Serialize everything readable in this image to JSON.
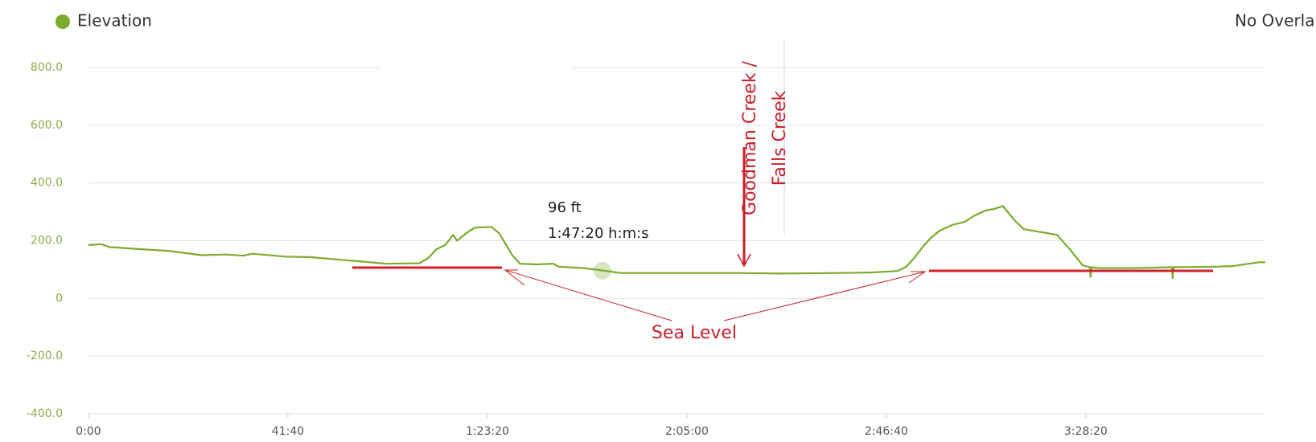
{
  "chart_data": {
    "type": "line",
    "legend": "No Overla",
    "x": [
      0,
      160,
      260,
      580,
      1000,
      1420,
      1730,
      1940,
      2050,
      2470,
      2790,
      3100,
      3420,
      3730,
      4150,
      4260,
      4360,
      4470,
      4570,
      4620,
      4730,
      4840,
      5050,
      5150,
      5310,
      5410,
      5620,
      5830,
      5890,
      6200,
      6360,
      6570,
      6670,
      7300,
      8150,
      8670,
      9410,
      9830,
      10140,
      10250,
      10350,
      10460,
      10560,
      10670,
      10830,
      10980,
      11090,
      11250,
      11350,
      11460,
      11610,
      11720,
      11930,
      12140,
      12300,
      12460,
      12550,
      12560,
      12570,
      12670,
      13090,
      13580,
      13590,
      13600,
      13610,
      14140,
      14350,
      14660,
      14750
    ],
    "series": [
      {
        "name": "Elevation",
        "color": "#7aab2f",
        "values": [
          185,
          188,
          178,
          172,
          165,
          150,
          152,
          148,
          155,
          145,
          143,
          135,
          128,
          120,
          122,
          140,
          170,
          185,
          220,
          200,
          225,
          245,
          248,
          225,
          150,
          120,
          118,
          120,
          110,
          105,
          100,
          92,
          88,
          88,
          88,
          86,
          88,
          90,
          95,
          110,
          140,
          180,
          210,
          235,
          255,
          265,
          285,
          305,
          310,
          320,
          270,
          240,
          230,
          220,
          170,
          115,
          108,
          75,
          108,
          105,
          105,
          108,
          70,
          108,
          108,
          110,
          112,
          125,
          125
        ]
      }
    ],
    "xlim": [
      0,
      14750
    ],
    "ylim": [
      -400,
      800
    ],
    "xticks": [
      {
        "value": 0,
        "label": "0:00"
      },
      {
        "value": 2500,
        "label": "41:40"
      },
      {
        "value": 5000,
        "label": "1:23:20"
      },
      {
        "value": 7500,
        "label": "2:05:00"
      },
      {
        "value": 10000,
        "label": "2:46:40"
      },
      {
        "value": 12500,
        "label": "3:28:20"
      }
    ],
    "yticks": [
      {
        "value": 800,
        "label": "800.0"
      },
      {
        "value": 600,
        "label": "600.0"
      },
      {
        "value": 400,
        "label": "400.0"
      },
      {
        "value": 200,
        "label": "200.0"
      },
      0,
      {
        "value": -200,
        "label": "-200.0"
      },
      {
        "value": -400,
        "label": "-400.0"
      }
    ],
    "grid": true,
    "hover": {
      "x": 6440,
      "x_label": "1:47:20 h:m:s",
      "value": 96,
      "value_label": "96 ft"
    },
    "annotations": {
      "sea_level": "Sea Level",
      "creek": [
        "Goodman Creek /",
        "Falls Creek"
      ]
    }
  }
}
